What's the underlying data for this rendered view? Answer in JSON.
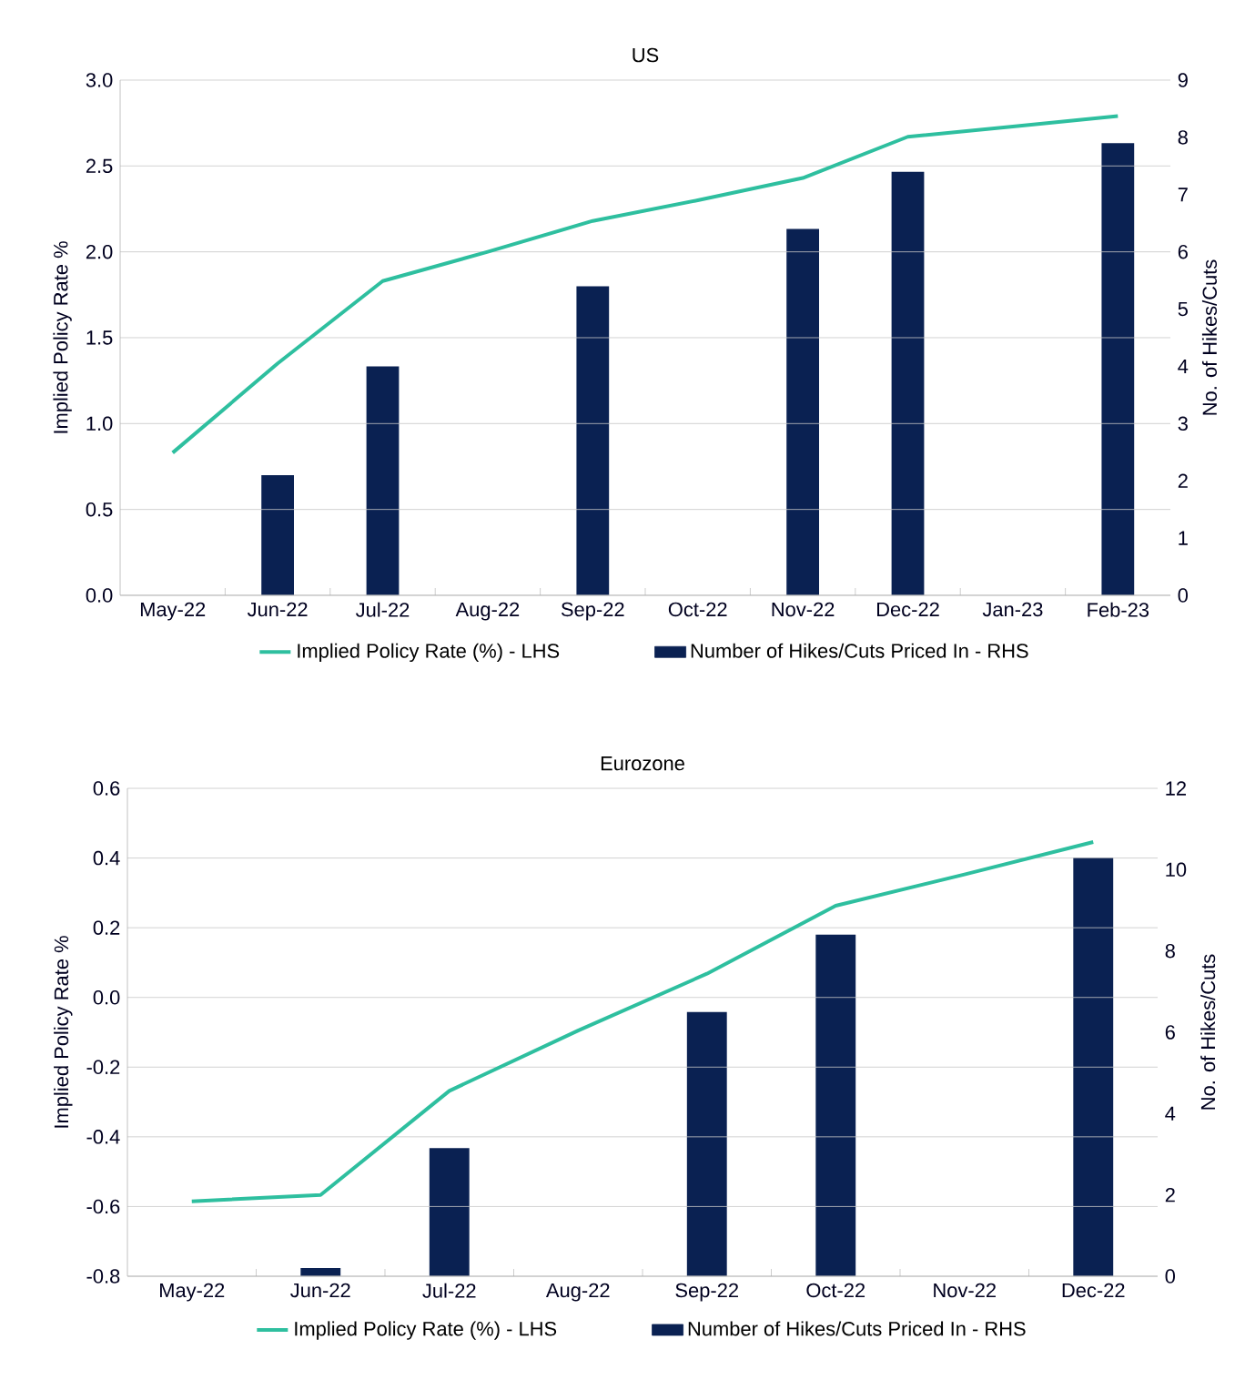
{
  "chart_data": [
    {
      "type": "bar",
      "title": "US",
      "ylabel": "Implied Policy Rate %",
      "y2label": "No. of Hikes/Cuts",
      "categories": [
        "May-22",
        "Jun-22",
        "Jul-22",
        "Aug-22",
        "Sep-22",
        "Oct-22",
        "Nov-22",
        "Dec-22",
        "Jan-23",
        "Feb-23"
      ],
      "series": [
        {
          "name": "Implied Policy Rate (%) - LHS",
          "type": "line",
          "color": "#2ebf9f",
          "values": [
            0.83,
            1.35,
            1.83,
            2.0,
            2.18,
            2.3,
            2.43,
            2.67,
            2.73,
            2.79
          ]
        },
        {
          "name": "Number of Hikes/Cuts Priced In - RHS",
          "axis": "y2",
          "color": "#0a2152",
          "values": [
            null,
            2.1,
            4.0,
            null,
            5.4,
            null,
            6.4,
            7.4,
            null,
            7.9
          ]
        }
      ],
      "ylim": [
        0,
        3
      ],
      "yticks": [
        {
          "value": 0,
          "label": "0.0"
        },
        {
          "value": 0.5,
          "label": "0.5"
        },
        {
          "value": 1,
          "label": "1.0"
        },
        {
          "value": 1.5,
          "label": "1.5"
        },
        {
          "value": 2,
          "label": "2.0"
        },
        {
          "value": 2.5,
          "label": "2.5"
        },
        {
          "value": 3,
          "label": "3.0"
        }
      ],
      "y2lim": [
        0,
        9
      ],
      "y2ticks": [
        0,
        1,
        2,
        3,
        4,
        5,
        6,
        7,
        8,
        9
      ],
      "grid": "y",
      "legend": "bottom"
    },
    {
      "type": "bar",
      "title": "Eurozone",
      "ylabel": "Implied Policy Rate %",
      "y2label": "No. of Hikes/Cuts",
      "categories": [
        "May-22",
        "Jun-22",
        "Jul-22",
        "Aug-22",
        "Sep-22",
        "Oct-22",
        "Nov-22",
        "Dec-22"
      ],
      "series": [
        {
          "name": "Implied Policy Rate (%) - LHS",
          "type": "line",
          "color": "#2ebf9f",
          "values": [
            -0.585,
            -0.567,
            -0.268,
            -0.095,
            0.068,
            0.263,
            0.353,
            0.446
          ]
        },
        {
          "name": "Number of Hikes/Cuts Priced In - RHS",
          "axis": "y2",
          "color": "#0a2152",
          "values": [
            null,
            0.2,
            3.15,
            null,
            6.5,
            8.4,
            null,
            10.3
          ]
        }
      ],
      "ylim": [
        -0.8,
        0.6
      ],
      "yticks": [
        {
          "value": -0.8,
          "label": "-0.8"
        },
        {
          "value": -0.6,
          "label": "-0.6"
        },
        {
          "value": -0.4,
          "label": "-0.4"
        },
        {
          "value": -0.2,
          "label": "-0.2"
        },
        {
          "value": 0,
          "label": "0.0"
        },
        {
          "value": 0.2,
          "label": "0.2"
        },
        {
          "value": 0.4,
          "label": "0.4"
        },
        {
          "value": 0.6,
          "label": "0.6"
        }
      ],
      "y2lim": [
        0,
        12
      ],
      "y2ticks": [
        0,
        2,
        4,
        6,
        8,
        10,
        12
      ],
      "grid": "y",
      "legend": "bottom"
    }
  ]
}
